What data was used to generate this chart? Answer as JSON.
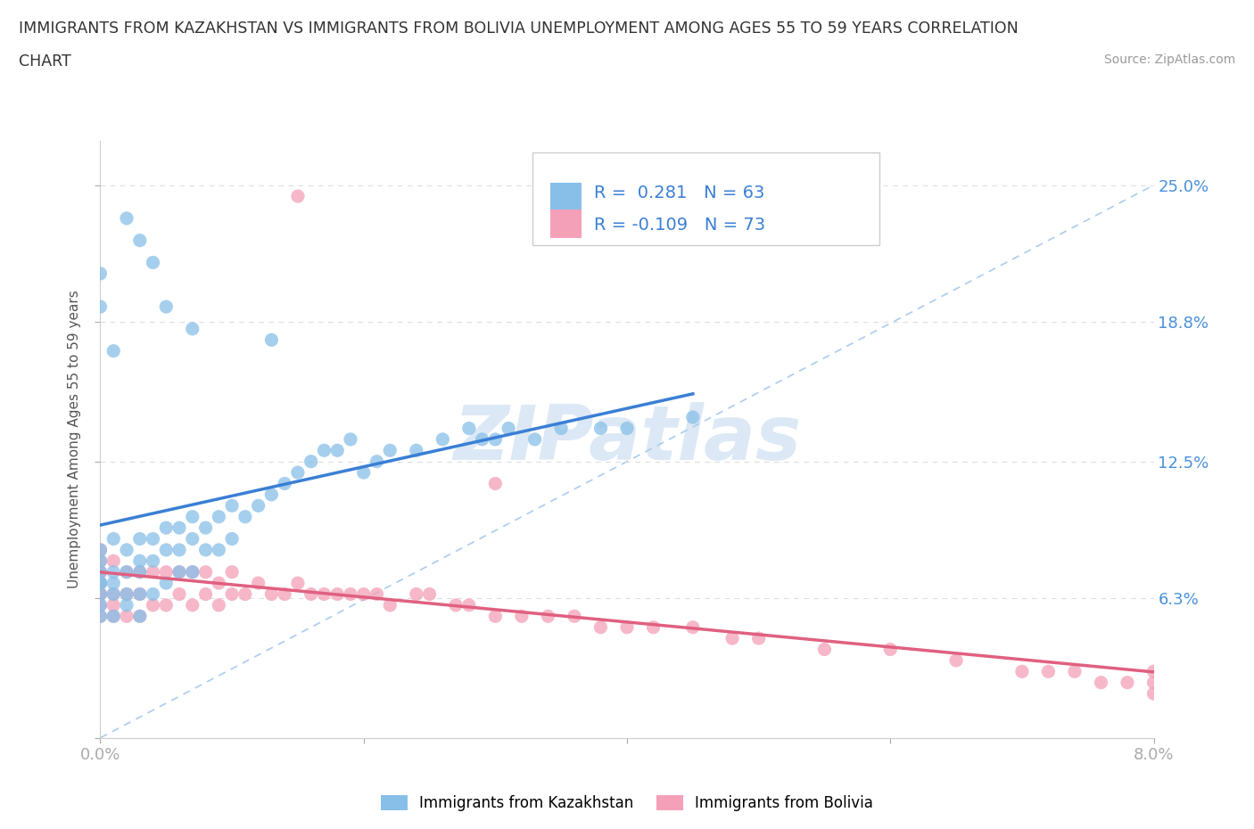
{
  "title_line1": "IMMIGRANTS FROM KAZAKHSTAN VS IMMIGRANTS FROM BOLIVIA UNEMPLOYMENT AMONG AGES 55 TO 59 YEARS CORRELATION",
  "title_line2": "CHART",
  "source": "Source: ZipAtlas.com",
  "ylabel": "Unemployment Among Ages 55 to 59 years",
  "xlim": [
    0.0,
    0.08
  ],
  "ylim": [
    0.0,
    0.27
  ],
  "ytick_positions": [
    0.0,
    0.063,
    0.125,
    0.188,
    0.25
  ],
  "ytick_labels": [
    "",
    "6.3%",
    "12.5%",
    "18.8%",
    "25.0%"
  ],
  "xtick_positions": [
    0.0,
    0.02,
    0.04,
    0.06,
    0.08
  ],
  "xtick_labels": [
    "0.0%",
    "",
    "",
    "",
    "8.0%"
  ],
  "R_kaz": 0.281,
  "N_kaz": 63,
  "R_bol": -0.109,
  "N_bol": 73,
  "kaz_scatter_color": "#88bfe8",
  "bol_scatter_color": "#f4a0b8",
  "kaz_line_color": "#3a7fd5",
  "bol_line_color": "#e06080",
  "diag_line_color": "#aaccee",
  "grid_color": "#dddddd",
  "text_color": "#333333",
  "axis_tick_color": "#4a90d9",
  "source_color": "#999999",
  "watermark_text": "ZIPatlas",
  "watermark_color": "#dce8f5",
  "legend_label_kaz": "Immigrants from Kazakhstan",
  "legend_label_bol": "Immigrants from Bolivia",
  "background_color": "#ffffff",
  "kaz_x": [
    0.0,
    0.0,
    0.0,
    0.0,
    0.0,
    0.0,
    0.0,
    0.0,
    0.001,
    0.001,
    0.001,
    0.001,
    0.001,
    0.002,
    0.002,
    0.002,
    0.002,
    0.003,
    0.003,
    0.003,
    0.003,
    0.003,
    0.004,
    0.004,
    0.004,
    0.005,
    0.005,
    0.005,
    0.006,
    0.006,
    0.006,
    0.007,
    0.007,
    0.007,
    0.008,
    0.008,
    0.009,
    0.009,
    0.01,
    0.01,
    0.011,
    0.012,
    0.013,
    0.014,
    0.015,
    0.016,
    0.017,
    0.018,
    0.019,
    0.02,
    0.021,
    0.022,
    0.024,
    0.026,
    0.028,
    0.029,
    0.03,
    0.031,
    0.033,
    0.035,
    0.038,
    0.04,
    0.045
  ],
  "kaz_y": [
    0.055,
    0.06,
    0.065,
    0.07,
    0.07,
    0.075,
    0.08,
    0.085,
    0.055,
    0.065,
    0.07,
    0.075,
    0.09,
    0.06,
    0.065,
    0.075,
    0.085,
    0.055,
    0.065,
    0.075,
    0.08,
    0.09,
    0.065,
    0.08,
    0.09,
    0.07,
    0.085,
    0.095,
    0.075,
    0.085,
    0.095,
    0.075,
    0.09,
    0.1,
    0.085,
    0.095,
    0.085,
    0.1,
    0.09,
    0.105,
    0.1,
    0.105,
    0.11,
    0.115,
    0.12,
    0.125,
    0.13,
    0.13,
    0.135,
    0.12,
    0.125,
    0.13,
    0.13,
    0.135,
    0.14,
    0.135,
    0.135,
    0.14,
    0.135,
    0.14,
    0.14,
    0.14,
    0.145
  ],
  "kaz_outliers_x": [
    0.0,
    0.0,
    0.001,
    0.002,
    0.003,
    0.004,
    0.005,
    0.007,
    0.013
  ],
  "kaz_outliers_y": [
    0.21,
    0.195,
    0.175,
    0.235,
    0.225,
    0.215,
    0.195,
    0.185,
    0.18
  ],
  "bol_x": [
    0.0,
    0.0,
    0.0,
    0.0,
    0.0,
    0.0,
    0.0,
    0.0,
    0.0,
    0.0,
    0.001,
    0.001,
    0.001,
    0.001,
    0.002,
    0.002,
    0.002,
    0.003,
    0.003,
    0.003,
    0.004,
    0.004,
    0.005,
    0.005,
    0.006,
    0.006,
    0.007,
    0.007,
    0.008,
    0.008,
    0.009,
    0.009,
    0.01,
    0.01,
    0.011,
    0.012,
    0.013,
    0.014,
    0.015,
    0.016,
    0.017,
    0.018,
    0.019,
    0.02,
    0.021,
    0.022,
    0.024,
    0.025,
    0.027,
    0.028,
    0.03,
    0.032,
    0.034,
    0.036,
    0.038,
    0.04,
    0.042,
    0.045,
    0.048,
    0.05,
    0.055,
    0.06,
    0.065,
    0.07,
    0.072,
    0.074,
    0.076,
    0.078,
    0.08,
    0.08,
    0.08,
    0.015,
    0.03
  ],
  "bol_y": [
    0.055,
    0.06,
    0.065,
    0.065,
    0.07,
    0.07,
    0.075,
    0.075,
    0.08,
    0.085,
    0.055,
    0.06,
    0.065,
    0.08,
    0.055,
    0.065,
    0.075,
    0.055,
    0.065,
    0.075,
    0.06,
    0.075,
    0.06,
    0.075,
    0.065,
    0.075,
    0.06,
    0.075,
    0.065,
    0.075,
    0.06,
    0.07,
    0.065,
    0.075,
    0.065,
    0.07,
    0.065,
    0.065,
    0.07,
    0.065,
    0.065,
    0.065,
    0.065,
    0.065,
    0.065,
    0.06,
    0.065,
    0.065,
    0.06,
    0.06,
    0.055,
    0.055,
    0.055,
    0.055,
    0.05,
    0.05,
    0.05,
    0.05,
    0.045,
    0.045,
    0.04,
    0.04,
    0.035,
    0.03,
    0.03,
    0.03,
    0.025,
    0.025,
    0.02,
    0.025,
    0.03,
    0.245,
    0.115
  ]
}
